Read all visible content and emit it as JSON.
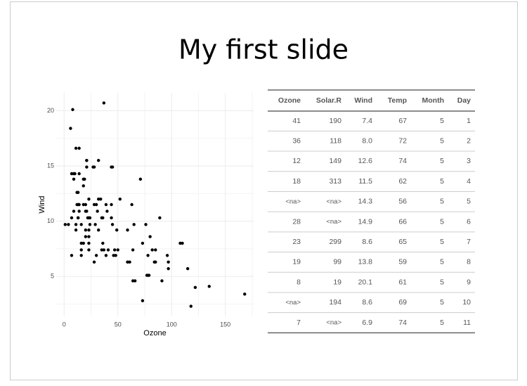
{
  "title": "My first slide",
  "chart_data": {
    "type": "scatter",
    "xlabel": "Ozone",
    "ylabel": "Wind",
    "color": "#000000",
    "grid": true,
    "x": [
      41,
      36,
      12,
      18,
      28,
      23,
      19,
      8,
      7,
      16,
      11,
      14,
      18,
      14,
      34,
      6,
      30,
      11,
      1,
      11,
      4,
      32,
      23,
      45,
      115,
      37,
      29,
      71,
      39,
      23,
      21,
      37,
      20,
      12,
      13,
      135,
      49,
      32,
      64,
      40,
      77,
      97,
      97,
      85,
      10,
      27,
      7,
      48,
      35,
      61,
      79,
      63,
      16,
      80,
      108,
      20,
      52,
      82,
      50,
      64,
      59,
      39,
      9,
      16,
      78,
      35,
      66,
      122,
      89,
      110,
      44,
      28,
      65,
      22,
      59,
      23,
      31,
      44,
      21,
      9,
      45,
      168,
      73,
      76,
      118,
      84,
      85,
      96,
      78,
      73,
      91,
      47,
      32,
      20,
      23,
      21,
      24,
      44,
      21,
      28,
      9,
      13,
      46,
      18,
      13,
      24,
      16,
      13,
      23,
      36,
      7,
      14,
      30,
      14,
      18,
      20
    ],
    "values": [
      7.4,
      8.0,
      12.6,
      11.5,
      14.9,
      8.6,
      13.8,
      20.1,
      6.9,
      9.7,
      9.2,
      10.9,
      13.2,
      11.5,
      12.0,
      18.4,
      11.5,
      9.7,
      9.7,
      16.6,
      9.7,
      12.0,
      12.0,
      14.9,
      5.7,
      7.4,
      9.7,
      13.8,
      11.5,
      8.0,
      14.9,
      20.7,
      9.2,
      11.5,
      10.3,
      4.1,
      9.2,
      9.2,
      4.6,
      10.9,
      5.1,
      6.3,
      5.7,
      7.4,
      14.3,
      14.9,
      14.3,
      6.9,
      10.3,
      6.3,
      5.1,
      11.5,
      6.9,
      8.6,
      8.0,
      8.6,
      12.0,
      7.4,
      7.4,
      7.4,
      9.2,
      6.9,
      13.8,
      7.4,
      6.9,
      7.4,
      4.6,
      4.0,
      10.3,
      8.0,
      11.5,
      11.5,
      9.7,
      10.3,
      6.3,
      7.4,
      10.9,
      10.3,
      15.5,
      14.3,
      9.7,
      3.4,
      8.0,
      9.7,
      2.3,
      6.3,
      6.3,
      6.9,
      5.1,
      2.8,
      4.6,
      7.4,
      15.5,
      10.9,
      10.3,
      10.9,
      9.7,
      14.9,
      15.5,
      6.3,
      10.9,
      11.5,
      6.9,
      13.8,
      10.3,
      10.3,
      8.0,
      12.6,
      9.2,
      10.3,
      10.3,
      16.6,
      6.9,
      14.3,
      8.0,
      11.5
    ],
    "xlim": [
      -7.35,
      176.35
    ],
    "ylim": [
      1.38,
      21.62
    ],
    "xticks": [
      0,
      50,
      100,
      150
    ],
    "yticks": [
      5,
      10,
      15,
      20
    ]
  },
  "table": {
    "columns": [
      "Ozone",
      "Solar.R",
      "Wind",
      "Temp",
      "Month",
      "Day"
    ],
    "rows": [
      [
        "41",
        "190",
        "7.4",
        "67",
        "5",
        "1"
      ],
      [
        "36",
        "118",
        "8.0",
        "72",
        "5",
        "2"
      ],
      [
        "12",
        "149",
        "12.6",
        "74",
        "5",
        "3"
      ],
      [
        "18",
        "313",
        "11.5",
        "62",
        "5",
        "4"
      ],
      [
        "<na>",
        "<na>",
        "14.3",
        "56",
        "5",
        "5"
      ],
      [
        "28",
        "<na>",
        "14.9",
        "66",
        "5",
        "6"
      ],
      [
        "23",
        "299",
        "8.6",
        "65",
        "5",
        "7"
      ],
      [
        "19",
        "99",
        "13.8",
        "59",
        "5",
        "8"
      ],
      [
        "8",
        "19",
        "20.1",
        "61",
        "5",
        "9"
      ],
      [
        "<na>",
        "194",
        "8.6",
        "69",
        "5",
        "10"
      ],
      [
        "7",
        "<na>",
        "6.9",
        "74",
        "5",
        "11"
      ]
    ]
  }
}
